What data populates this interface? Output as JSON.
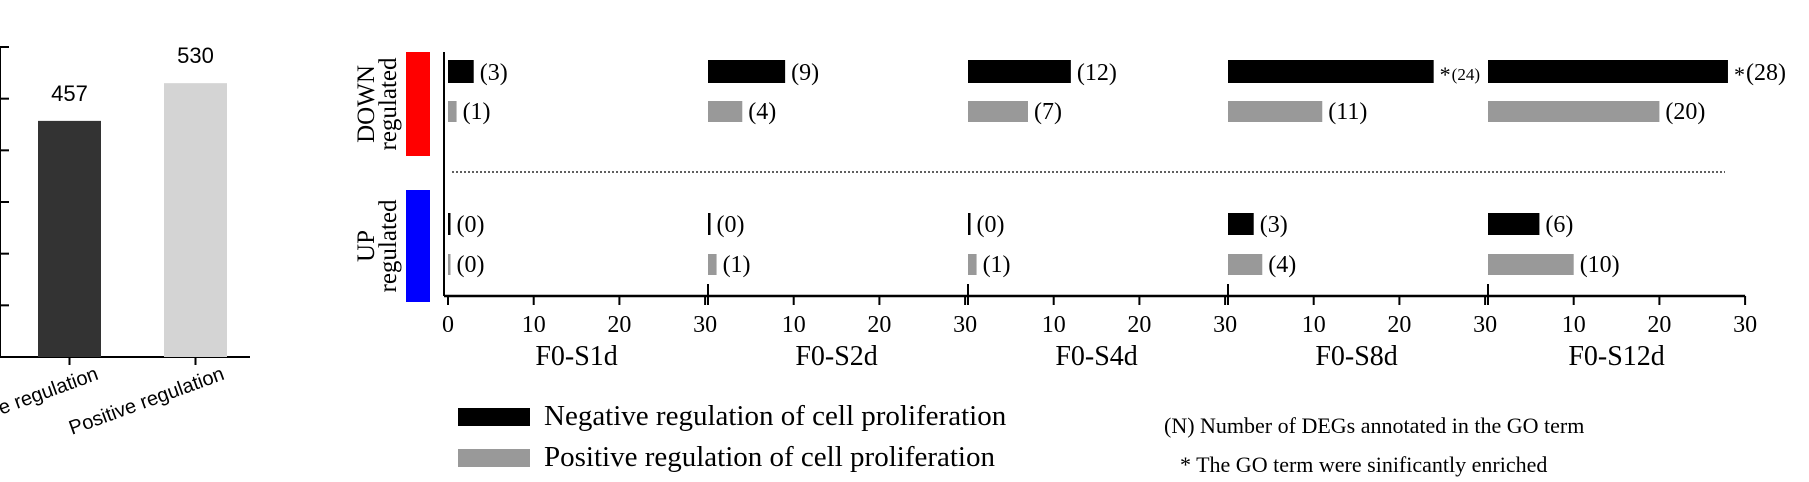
{
  "chart_data": [
    {
      "type": "bar",
      "categories": [
        "Negative regulation",
        "Positive regulation"
      ],
      "values": [
        457,
        530
      ],
      "data_labels": [
        "457",
        "530"
      ],
      "colors": [
        "#333333",
        "#d4d4d4"
      ],
      "ylim": [
        0,
        600
      ]
    },
    {
      "type": "bar",
      "orientation": "horizontal",
      "groups": [
        {
          "label": "DOWN",
          "sublabel": "regulated",
          "color": "#ff0000"
        },
        {
          "label": "UP",
          "sublabel": "regulated",
          "color": "#0000ff"
        }
      ],
      "panels": [
        "F0-S1d",
        "F0-S2d",
        "F0-S4d",
        "F0-S8d",
        "F0-S12d"
      ],
      "xlim": [
        0,
        30
      ],
      "xticks": [
        "0",
        "10",
        "20",
        "30"
      ],
      "series": [
        {
          "name": "Negative regulation of cell proliferation",
          "color": "#000000",
          "down": [
            3,
            9,
            12,
            24,
            28
          ],
          "up": [
            0,
            0,
            0,
            3,
            6
          ],
          "down_labels": [
            "(3)",
            "(9)",
            "(12)",
            "(24)",
            "(28)"
          ],
          "up_labels": [
            "(0)",
            "(0)",
            "(0)",
            "(3)",
            "(6)"
          ],
          "down_significant": [
            false,
            false,
            false,
            true,
            true
          ]
        },
        {
          "name": "Positive regulation of cell proliferation",
          "color": "#999999",
          "down": [
            1,
            4,
            7,
            11,
            20
          ],
          "up": [
            0,
            1,
            1,
            4,
            10
          ],
          "down_labels": [
            "(1)",
            "(4)",
            "(7)",
            "(11)",
            "(20)"
          ],
          "up_labels": [
            "(0)",
            "(1)",
            "(1)",
            "(4)",
            "(10)"
          ],
          "down_significant": [
            false,
            false,
            false,
            false,
            false
          ]
        }
      ],
      "significance_marker": "*",
      "notes": [
        "(N) Number of DEGs annotated in the GO term",
        "*  The GO term were sinificantly enriched"
      ]
    }
  ]
}
